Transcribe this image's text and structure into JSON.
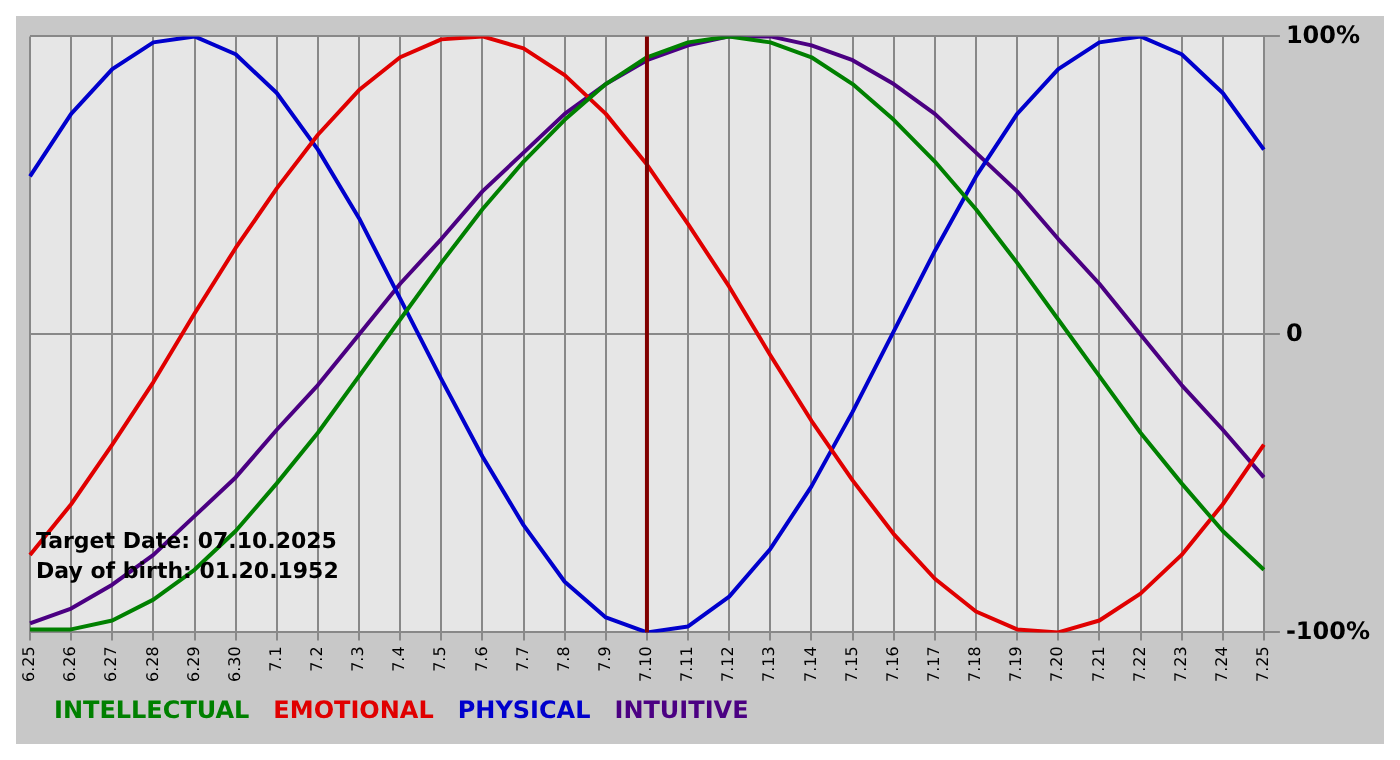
{
  "chart_data": {
    "type": "line",
    "categories": [
      "6.25",
      "6.26",
      "6.27",
      "6.28",
      "6.29",
      "6.30",
      "7.1",
      "7.2",
      "7.3",
      "7.4",
      "7.5",
      "7.6",
      "7.7",
      "7.8",
      "7.9",
      "7.10",
      "7.11",
      "7.12",
      "7.13",
      "7.14",
      "7.15",
      "7.16",
      "7.17",
      "7.18",
      "7.19",
      "7.20",
      "7.21",
      "7.22",
      "7.23",
      "7.24",
      "7.25"
    ],
    "series": [
      {
        "name": "INTELLECTUAL",
        "color": "#008000",
        "values": [
          -99,
          -99,
          -96,
          -89,
          -79,
          -66,
          -50,
          -33,
          -14,
          5,
          24,
          42,
          58,
          72,
          84,
          93,
          98,
          100,
          98,
          93,
          84,
          72,
          58,
          42,
          24,
          5,
          -14,
          -33,
          -50,
          -66,
          -79
        ]
      },
      {
        "name": "EMOTIONAL",
        "color": "#e00000",
        "values": [
          -74,
          -57,
          -37,
          -16,
          7,
          29,
          49,
          67,
          82,
          93,
          99,
          100,
          96,
          87,
          74,
          57,
          37,
          16,
          -7,
          -29,
          -49,
          -67,
          -82,
          -93,
          -99,
          -100,
          -96,
          -87,
          -74,
          -57,
          -37
        ]
      },
      {
        "name": "PHYSICAL",
        "color": "#0000cc",
        "values": [
          53,
          74,
          89,
          98,
          100,
          94,
          81,
          62,
          39,
          12,
          -15,
          -41,
          -64,
          -83,
          -95,
          -100,
          -98,
          -88,
          -72,
          -51,
          -26,
          1,
          28,
          53,
          74,
          89,
          98,
          100,
          94,
          81,
          62
        ]
      },
      {
        "name": "INTUITIVE",
        "color": "#4b0082",
        "values": [
          -97,
          -92,
          -84,
          -74,
          -61,
          -48,
          -32,
          -17,
          0,
          17,
          32,
          48,
          61,
          74,
          84,
          92,
          97,
          100,
          100,
          97,
          92,
          84,
          74,
          61,
          48,
          32,
          17,
          0,
          -17,
          -32,
          -48
        ]
      }
    ],
    "ylim": [
      -100,
      100
    ],
    "yticks": [
      {
        "value": -100,
        "label": "-100%"
      },
      0,
      {
        "value": 100,
        "label": "100%"
      }
    ],
    "grid": true,
    "legend": "bottom left",
    "marker": "none",
    "line_style": "solid",
    "ref_lines": [
      {
        "axis": "x",
        "value": "7.10",
        "color": "#800000"
      }
    ],
    "annotations": [
      "Target Date: 07.10.2025",
      "Day of birth: 01.20.1952"
    ]
  }
}
